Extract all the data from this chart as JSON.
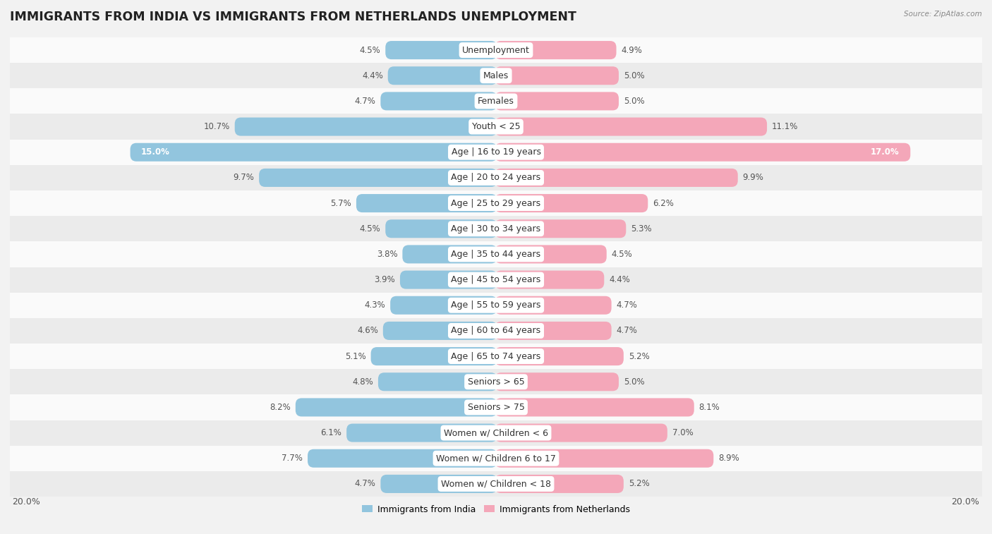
{
  "title": "IMMIGRANTS FROM INDIA VS IMMIGRANTS FROM NETHERLANDS UNEMPLOYMENT",
  "source": "Source: ZipAtlas.com",
  "categories": [
    "Unemployment",
    "Males",
    "Females",
    "Youth < 25",
    "Age | 16 to 19 years",
    "Age | 20 to 24 years",
    "Age | 25 to 29 years",
    "Age | 30 to 34 years",
    "Age | 35 to 44 years",
    "Age | 45 to 54 years",
    "Age | 55 to 59 years",
    "Age | 60 to 64 years",
    "Age | 65 to 74 years",
    "Seniors > 65",
    "Seniors > 75",
    "Women w/ Children < 6",
    "Women w/ Children 6 to 17",
    "Women w/ Children < 18"
  ],
  "india_values": [
    4.5,
    4.4,
    4.7,
    10.7,
    15.0,
    9.7,
    5.7,
    4.5,
    3.8,
    3.9,
    4.3,
    4.6,
    5.1,
    4.8,
    8.2,
    6.1,
    7.7,
    4.7
  ],
  "netherlands_values": [
    4.9,
    5.0,
    5.0,
    11.1,
    17.0,
    9.9,
    6.2,
    5.3,
    4.5,
    4.4,
    4.7,
    4.7,
    5.2,
    5.0,
    8.1,
    7.0,
    8.9,
    5.2
  ],
  "india_color": "#92c5de",
  "netherlands_color": "#f4a7b9",
  "india_label": "Immigrants from India",
  "netherlands_label": "Immigrants from Netherlands",
  "axis_max": 20.0,
  "background_color": "#f2f2f2",
  "row_color_light": "#fafafa",
  "row_color_dark": "#ebebeb",
  "title_fontsize": 12.5,
  "label_fontsize": 9,
  "value_fontsize": 8.5,
  "bar_height": 0.62
}
